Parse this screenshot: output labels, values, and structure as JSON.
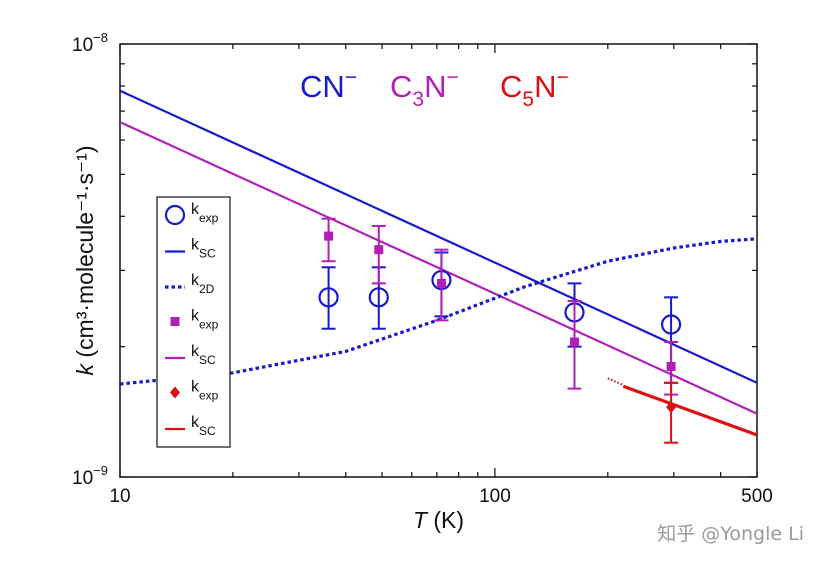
{
  "chart_data": {
    "type": "scatter",
    "xlabel": {
      "italic": "T",
      "rest": " (K)"
    },
    "ylabel": {
      "italic": "k",
      "rest": " (cm³·molecule⁻¹·s⁻¹)"
    },
    "x_scale": "log",
    "y_scale": "log",
    "xlim": [
      10,
      500
    ],
    "ylim": [
      1e-09,
      1e-08
    ],
    "x_ticks": [
      {
        "value": 10,
        "label": "10"
      },
      {
        "value": 100,
        "label": "100"
      },
      {
        "value": 500,
        "label": "500"
      }
    ],
    "y_ticks": [
      {
        "value": 1e-09,
        "base": "10",
        "exp": "−9"
      },
      {
        "value": 1e-08,
        "base": "10",
        "exp": "−8"
      }
    ],
    "grid": false,
    "species_labels": [
      {
        "base": "CN",
        "sub": "",
        "sup": "−",
        "color": "#1a1acc"
      },
      {
        "base": "C",
        "sub": "3",
        "mid": "N",
        "sup": "−",
        "color": "#b020b8"
      },
      {
        "base": "C",
        "sub": "5",
        "mid": "N",
        "sup": "−",
        "color": "#dd1111"
      }
    ],
    "legend": {
      "position": "left",
      "entries": [
        {
          "symbol": "open-circle",
          "color": "#1a1acc",
          "base": "k",
          "sub": "exp"
        },
        {
          "symbol": "solid-line",
          "color": "#1a1acc",
          "base": "k",
          "sub": "SC"
        },
        {
          "symbol": "dotted-line",
          "color": "#1a1acc",
          "base": "k",
          "sub": "2D"
        },
        {
          "symbol": "square",
          "color": "#b020b8",
          "base": "k",
          "sub": "exp"
        },
        {
          "symbol": "solid-line",
          "color": "#b020b8",
          "base": "k",
          "sub": "SC"
        },
        {
          "symbol": "diamond",
          "color": "#dd1111",
          "base": "k",
          "sub": "exp"
        },
        {
          "symbol": "solid-line",
          "color": "#dd1111",
          "base": "k",
          "sub": "SC"
        }
      ]
    },
    "series": [
      {
        "species": "CN-",
        "kind": "kexp",
        "marker": "open-circle",
        "color": "#1a1acc",
        "points": [
          {
            "x": 36,
            "y": 2.6e-09,
            "err_low": 2.2e-09,
            "err_high": 3.05e-09
          },
          {
            "x": 49,
            "y": 2.6e-09,
            "err_low": 2.2e-09,
            "err_high": 3.05e-09
          },
          {
            "x": 72,
            "y": 2.85e-09,
            "err_low": 2.35e-09,
            "err_high": 3.3e-09
          },
          {
            "x": 163,
            "y": 2.4e-09,
            "err_low": 2e-09,
            "err_high": 2.8e-09
          },
          {
            "x": 295,
            "y": 2.25e-09,
            "err_low": 1.65e-09,
            "err_high": 2.6e-09
          }
        ]
      },
      {
        "species": "C3N-",
        "kind": "kexp",
        "marker": "square",
        "color": "#b020b8",
        "points": [
          {
            "x": 36,
            "y": 3.6e-09,
            "err_low": 3.15e-09,
            "err_high": 3.95e-09
          },
          {
            "x": 49,
            "y": 3.35e-09,
            "err_low": 2.8e-09,
            "err_high": 3.8e-09
          },
          {
            "x": 72,
            "y": 2.8e-09,
            "err_low": 2.3e-09,
            "err_high": 3.35e-09
          },
          {
            "x": 163,
            "y": 2.05e-09,
            "err_low": 1.6e-09,
            "err_high": 2.55e-09
          },
          {
            "x": 295,
            "y": 1.8e-09,
            "err_low": 1.55e-09,
            "err_high": 2.05e-09
          }
        ]
      },
      {
        "species": "C5N-",
        "kind": "kexp",
        "marker": "diamond",
        "color": "#dd1111",
        "points": [
          {
            "x": 295,
            "y": 1.45e-09,
            "err_low": 1.2e-09,
            "err_high": 1.65e-09
          }
        ]
      },
      {
        "species": "CN-",
        "kind": "kSC",
        "style": "solid",
        "color": "#1a1acc",
        "points": [
          {
            "x": 10,
            "y": 7.8e-09
          },
          {
            "x": 500,
            "y": 1.65e-09
          }
        ]
      },
      {
        "species": "C3N-",
        "kind": "kSC",
        "style": "solid",
        "color": "#b020b8",
        "points": [
          {
            "x": 10,
            "y": 6.6e-09
          },
          {
            "x": 500,
            "y": 1.4e-09
          }
        ]
      },
      {
        "species": "CN-",
        "kind": "k2D",
        "style": "dotted",
        "color": "#1a1acc",
        "points": [
          {
            "x": 10,
            "y": 1.64e-09
          },
          {
            "x": 20,
            "y": 1.74e-09
          },
          {
            "x": 40,
            "y": 1.95e-09
          },
          {
            "x": 70,
            "y": 2.3e-09
          },
          {
            "x": 120,
            "y": 2.75e-09
          },
          {
            "x": 200,
            "y": 3.15e-09
          },
          {
            "x": 300,
            "y": 3.38e-09
          },
          {
            "x": 400,
            "y": 3.5e-09
          },
          {
            "x": 500,
            "y": 3.55e-09
          }
        ]
      },
      {
        "species": "C5N-",
        "kind": "kSC",
        "style": "solid",
        "color": "#dd1111",
        "points": [
          {
            "x": 220,
            "y": 1.62e-09
          },
          {
            "x": 500,
            "y": 1.25e-09
          }
        ]
      },
      {
        "species": "C5N-",
        "kind": "kSC-ext",
        "style": "dotted",
        "color": "#dd1111",
        "points": [
          {
            "x": 200,
            "y": 1.69e-09
          },
          {
            "x": 220,
            "y": 1.63e-09
          }
        ]
      }
    ]
  },
  "watermark": "知乎 @Yongle Li"
}
